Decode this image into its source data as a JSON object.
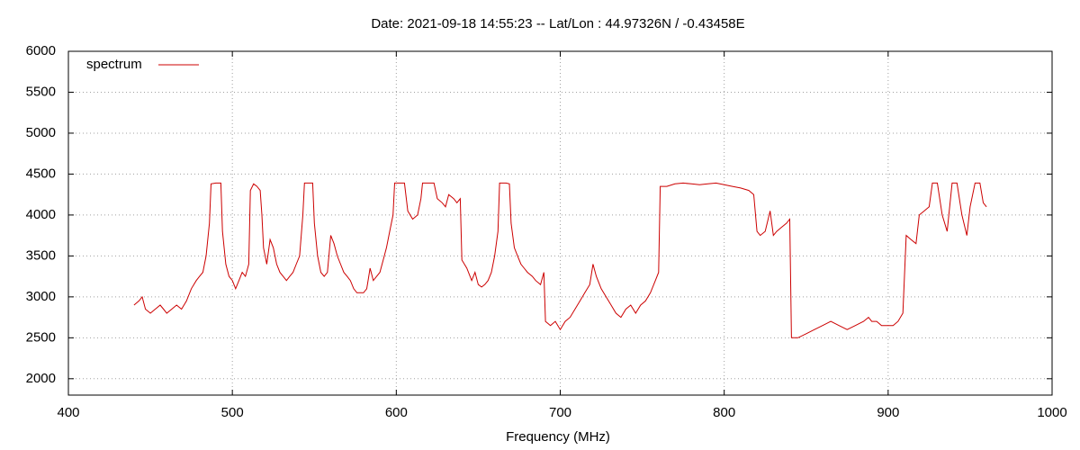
{
  "chart_data": {
    "type": "line",
    "title": "Date: 2021-09-18 14:55:23  --  Lat/Lon : 44.97326N / -0.43458E",
    "x_label": "Frequency (MHz)",
    "xlim": [
      400,
      1000
    ],
    "xticks": [
      400,
      500,
      600,
      700,
      800,
      900,
      1000
    ],
    "ylim": [
      1800,
      6000
    ],
    "yticks": [
      2000,
      2500,
      3000,
      3500,
      4000,
      4500,
      5000,
      5500,
      6000
    ],
    "grid": true,
    "legend": "upper left",
    "x": [
      440,
      443,
      445,
      447,
      450,
      453,
      456,
      458,
      460,
      463,
      466,
      469,
      472,
      475,
      478,
      480,
      482,
      484,
      486,
      487,
      490,
      493,
      494,
      496,
      498,
      500,
      502,
      504,
      506,
      508,
      510,
      511,
      513,
      515,
      517,
      518,
      519,
      521,
      523,
      525,
      527,
      529,
      531,
      533,
      535,
      537,
      539,
      541,
      543,
      544,
      547,
      549,
      550,
      552,
      554,
      556,
      558,
      560,
      562,
      564,
      566,
      568,
      570,
      572,
      574,
      576,
      578,
      580,
      582,
      584,
      586,
      588,
      590,
      592,
      594,
      596,
      598,
      599,
      602,
      605,
      607,
      610,
      613,
      615,
      616,
      620,
      623,
      625,
      628,
      630,
      632,
      635,
      637,
      639,
      640,
      643,
      646,
      648,
      650,
      652,
      654,
      656,
      658,
      660,
      662,
      663,
      667,
      669,
      670,
      672,
      674,
      676,
      678,
      680,
      683,
      685,
      688,
      690,
      691,
      694,
      697,
      700,
      703,
      706,
      709,
      712,
      715,
      718,
      720,
      722,
      725,
      728,
      731,
      734,
      737,
      740,
      743,
      746,
      749,
      752,
      755,
      758,
      760,
      761,
      765,
      770,
      775,
      780,
      785,
      790,
      795,
      800,
      805,
      810,
      815,
      818,
      820,
      822,
      825,
      828,
      830,
      832,
      835,
      838,
      840,
      841,
      845,
      850,
      855,
      860,
      865,
      870,
      875,
      880,
      885,
      888,
      890,
      893,
      896,
      900,
      903,
      906,
      909,
      911,
      914,
      917,
      919,
      922,
      925,
      927,
      930,
      933,
      936,
      939,
      942,
      945,
      948,
      950,
      953,
      956,
      958,
      960
    ],
    "series": [
      {
        "name": "spectrum",
        "color": "#cc0000",
        "values": [
          2900,
          2950,
          3000,
          2850,
          2800,
          2850,
          2900,
          2850,
          2800,
          2850,
          2900,
          2850,
          2950,
          3100,
          3200,
          3250,
          3300,
          3500,
          3900,
          4380,
          4390,
          4390,
          3800,
          3400,
          3250,
          3200,
          3100,
          3200,
          3300,
          3250,
          3400,
          4300,
          4380,
          4350,
          4300,
          4000,
          3600,
          3400,
          3700,
          3600,
          3400,
          3300,
          3250,
          3200,
          3250,
          3300,
          3400,
          3500,
          4000,
          4390,
          4390,
          4390,
          3900,
          3500,
          3300,
          3250,
          3300,
          3750,
          3650,
          3500,
          3400,
          3300,
          3250,
          3200,
          3100,
          3050,
          3050,
          3050,
          3100,
          3350,
          3200,
          3250,
          3300,
          3450,
          3600,
          3800,
          4000,
          4390,
          4390,
          4390,
          4050,
          3950,
          4000,
          4200,
          4390,
          4390,
          4390,
          4200,
          4150,
          4100,
          4250,
          4200,
          4150,
          4200,
          3450,
          3350,
          3200,
          3300,
          3150,
          3120,
          3150,
          3200,
          3300,
          3500,
          3800,
          4390,
          4390,
          4380,
          3900,
          3600,
          3500,
          3400,
          3350,
          3300,
          3250,
          3200,
          3150,
          3300,
          2700,
          2650,
          2700,
          2600,
          2700,
          2750,
          2850,
          2950,
          3050,
          3150,
          3400,
          3250,
          3100,
          3000,
          2900,
          2800,
          2750,
          2850,
          2900,
          2800,
          2900,
          2950,
          3050,
          3200,
          3300,
          4350,
          4350,
          4380,
          4390,
          4380,
          4370,
          4380,
          4390,
          4370,
          4350,
          4330,
          4300,
          4250,
          3800,
          3750,
          3800,
          4050,
          3750,
          3800,
          3850,
          3900,
          3950,
          2500,
          2500,
          2550,
          2600,
          2650,
          2700,
          2650,
          2600,
          2650,
          2700,
          2750,
          2700,
          2700,
          2650,
          2650,
          2650,
          2700,
          2800,
          3750,
          3700,
          3650,
          4000,
          4050,
          4100,
          4390,
          4390,
          4000,
          3800,
          4390,
          4390,
          4000,
          3750,
          4100,
          4390,
          4390,
          4150,
          4100
        ]
      }
    ]
  }
}
